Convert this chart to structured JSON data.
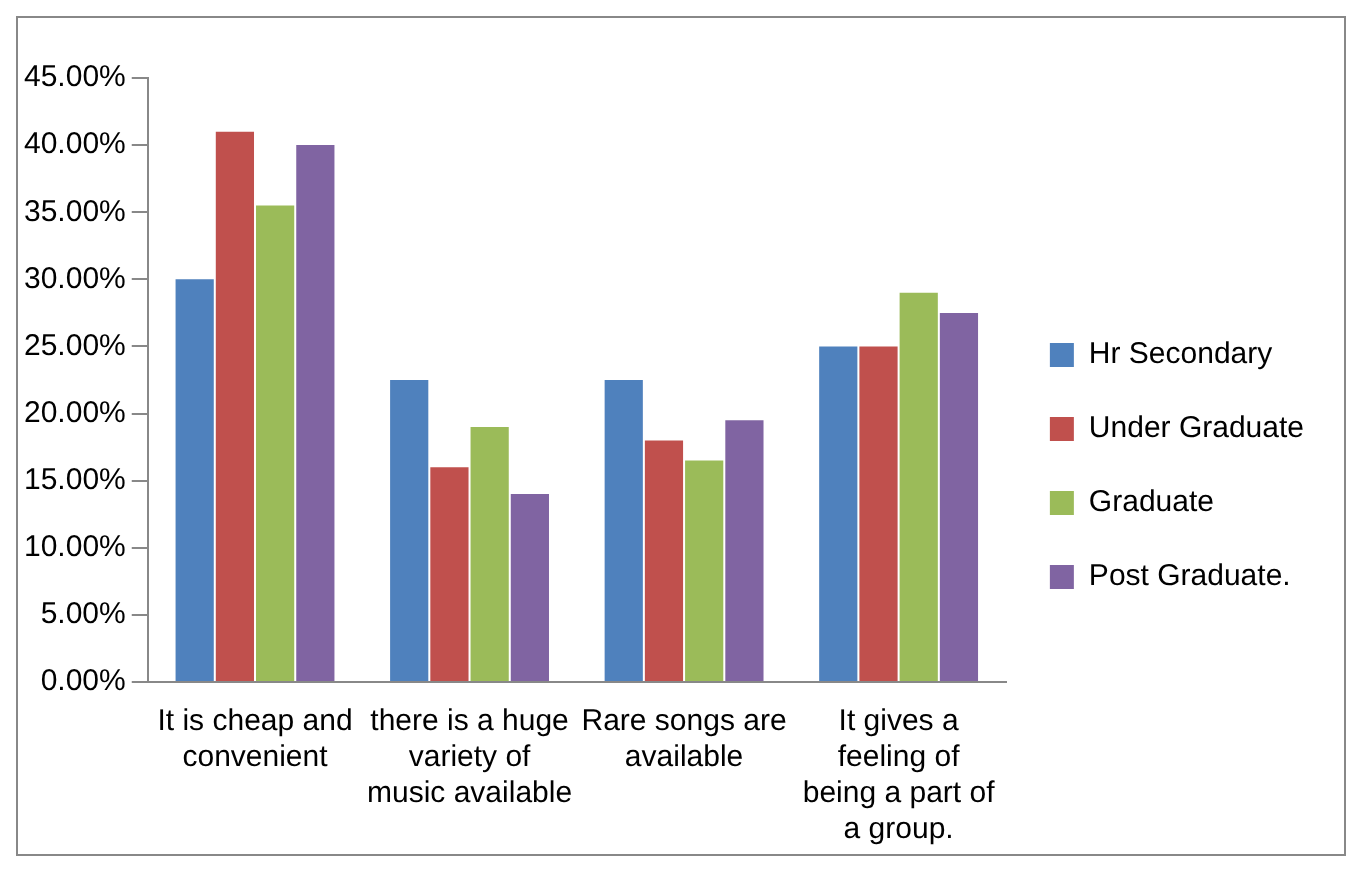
{
  "chart_data": {
    "type": "bar",
    "categories": [
      "It is cheap and convenient",
      "there is a huge variety of music available",
      "Rare songs are available",
      "It gives a feeling of being a part of a group."
    ],
    "series": [
      {
        "name": "Hr Secondary",
        "color": "#4f81bd",
        "values": [
          30,
          22.5,
          22.5,
          25
        ]
      },
      {
        "name": "Under Graduate",
        "color": "#c0504d",
        "values": [
          41,
          16,
          18,
          25
        ]
      },
      {
        "name": "Graduate",
        "color": "#9bbb59",
        "values": [
          35.5,
          19,
          16.5,
          29
        ]
      },
      {
        "name": "Post Graduate.",
        "color": "#8064a2",
        "values": [
          40,
          14,
          19.5,
          27.5
        ]
      }
    ],
    "ylim": [
      0,
      45
    ],
    "yticks": [
      {
        "value": 0,
        "label": "0.00%"
      },
      {
        "value": 5,
        "label": "5.00%"
      },
      {
        "value": 10,
        "label": "10.00%"
      },
      {
        "value": 15,
        "label": "15.00%"
      },
      {
        "value": 20,
        "label": "20.00%"
      },
      {
        "value": 25,
        "label": "25.00%"
      },
      {
        "value": 30,
        "label": "30.00%"
      },
      {
        "value": 35,
        "label": "35.00%"
      },
      {
        "value": 40,
        "label": "40.00%"
      },
      {
        "value": 45,
        "label": "45.00%"
      }
    ],
    "grid": false,
    "legend": "right"
  }
}
